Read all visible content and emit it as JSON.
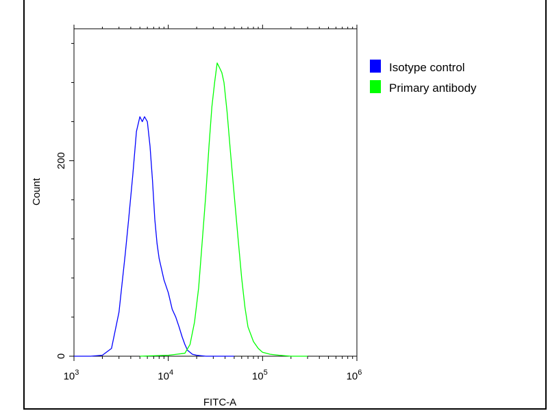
{
  "chart_data": {
    "type": "line",
    "title": "",
    "xlabel": "FITC-A",
    "ylabel": "Count",
    "x_scale": "log",
    "xlim": [
      1000,
      1000000
    ],
    "ylim": [
      0,
      335
    ],
    "x_ticks": [
      {
        "value": 1000,
        "base": "10",
        "exp": "3"
      },
      {
        "value": 10000,
        "base": "10",
        "exp": "4"
      },
      {
        "value": 100000,
        "base": "10",
        "exp": "5"
      },
      {
        "value": 1000000,
        "base": "10",
        "exp": "6"
      }
    ],
    "y_ticks": [
      {
        "value": 0,
        "label": "0"
      },
      {
        "value": 200,
        "label": "200"
      }
    ],
    "legend_position": "top-right",
    "series": [
      {
        "name": "Isotype control",
        "color": "#0000ff",
        "x": [
          1000,
          1500,
          2000,
          2500,
          3000,
          3500,
          3800,
          4200,
          4600,
          5000,
          5300,
          5600,
          6000,
          6400,
          6800,
          7200,
          7600,
          8000,
          9000,
          10000,
          11000,
          12000,
          13000,
          14000,
          15000,
          16000,
          18000,
          20000,
          25000,
          30000,
          50000
        ],
        "y": [
          0,
          0,
          1,
          8,
          45,
          105,
          140,
          185,
          230,
          245,
          240,
          245,
          240,
          215,
          180,
          140,
          115,
          100,
          78,
          65,
          48,
          40,
          30,
          20,
          12,
          6,
          2,
          1,
          0,
          0,
          0
        ]
      },
      {
        "name": "Primary antibody",
        "color": "#00ff00",
        "x": [
          5000,
          10000,
          15000,
          17000,
          19000,
          21000,
          23000,
          25000,
          27000,
          29000,
          31000,
          33000,
          35000,
          37000,
          39000,
          42000,
          46000,
          50000,
          55000,
          60000,
          65000,
          70000,
          80000,
          90000,
          100000,
          120000,
          150000,
          200000,
          300000
        ],
        "y": [
          0,
          1,
          3,
          12,
          35,
          70,
          120,
          165,
          215,
          255,
          280,
          300,
          295,
          290,
          280,
          250,
          205,
          165,
          120,
          80,
          50,
          30,
          15,
          8,
          4,
          2,
          1,
          0,
          0
        ]
      }
    ]
  }
}
